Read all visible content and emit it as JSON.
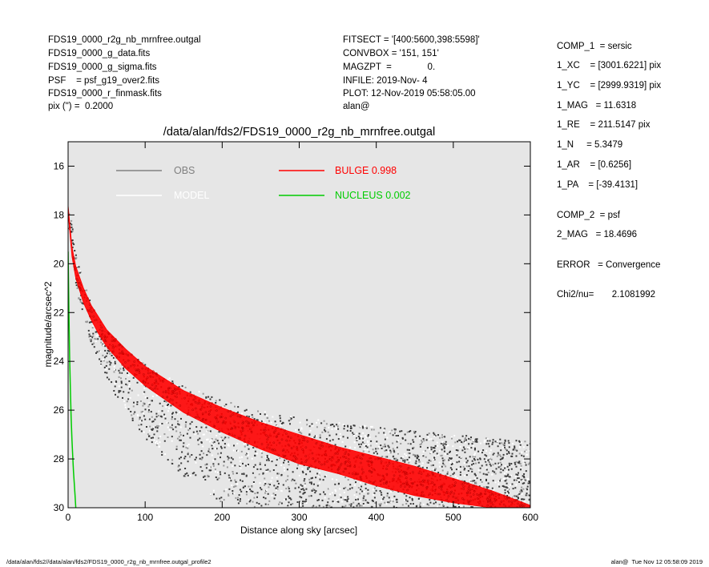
{
  "header_left": [
    "FDS19_0000_r2g_nb_mrnfree.outgal",
    "FDS19_0000_g_data.fits",
    "FDS19_0000_g_sigma.fits",
    "PSF    = psf_g19_over2.fits",
    "FDS19_0000_r_finmask.fits",
    "pix (\") =  0.2000"
  ],
  "header_mid": [
    "FITSECT = '[400:5600,398:5598]'",
    "CONVBOX = '151, 151'",
    "MAGZPT  =              0.",
    "INFILE: 2019-Nov- 4",
    "PLOT: 12-Nov-2019 05:58:05.00",
    "alan@"
  ],
  "right_panel": {
    "comp1": [
      "COMP_1  = sersic",
      "1_XC    = [3001.6221] pix",
      "1_YC    = [2999.9319] pix",
      "1_MAG   = 11.6318",
      "1_RE    = 211.5147 pix",
      "1_N     = 5.3479",
      "1_AR    = [0.6256]",
      "1_PA    = [-39.4131]"
    ],
    "comp2": [
      "COMP_2  = psf",
      "2_MAG   = 18.4696"
    ],
    "error": "ERROR   = Convergence",
    "chi2": "Chi2/nu=       2.1081992"
  },
  "footer": {
    "left": "/data/alan/fds2//data/alan/fds2/FDS19_0000_r2g_nb_mrnfree.outgal_profile2",
    "right": "alan@  Tue Nov 12 05:58:09 2019"
  },
  "colors": {
    "background": "#e6e6e6",
    "obs": "#808080",
    "model": "#ffffff",
    "bulge": "#ff0000",
    "nucleus": "#00cc00",
    "obs_dark": "#3a3a3a"
  },
  "chart_data": {
    "type": "scatter",
    "title": "/data/alan/fds2/FDS19_0000_r2g_nb_mrnfree.outgal",
    "xlabel": "Distance along sky [arcsec]",
    "ylabel": "magnitude/arcsec^2",
    "xlim": [
      0,
      600
    ],
    "ylim": [
      30,
      15
    ],
    "y_inverted": true,
    "xticks": [
      0,
      100,
      200,
      300,
      400,
      500,
      600
    ],
    "yticks": [
      16,
      18,
      20,
      22,
      24,
      26,
      28,
      30
    ],
    "legend": [
      {
        "label": "OBS",
        "color": "#808080"
      },
      {
        "label": "MODEL",
        "color": "#ffffff"
      },
      {
        "label": "BULGE  0.998",
        "color": "#ff0000"
      },
      {
        "label": "NUCLEUS  0.002",
        "color": "#00cc00"
      }
    ],
    "series": [
      {
        "name": "BULGE  0.998",
        "style": "band",
        "x": [
          0,
          5,
          10,
          20,
          30,
          40,
          50,
          75,
          100,
          150,
          200,
          250,
          300,
          350,
          400,
          450,
          500,
          550,
          600
        ],
        "y_upper": [
          17.6,
          19.3,
          20.1,
          21.0,
          21.7,
          22.2,
          22.7,
          23.5,
          24.2,
          25.2,
          25.9,
          26.5,
          27.0,
          27.5,
          27.9,
          28.3,
          28.8,
          29.3,
          29.9
        ],
        "y_lower": [
          17.9,
          19.7,
          20.6,
          21.6,
          22.3,
          22.9,
          23.4,
          24.3,
          25.0,
          26.1,
          26.9,
          27.6,
          28.2,
          28.6,
          29.1,
          29.5,
          29.8,
          30.0,
          30.0
        ]
      },
      {
        "name": "NUCLEUS  0.002",
        "style": "line",
        "x": [
          0,
          1,
          2,
          3,
          4,
          5,
          6,
          7,
          8,
          9,
          10
        ],
        "y": [
          19.5,
          22.0,
          23.8,
          25.2,
          26.3,
          27.2,
          27.9,
          28.5,
          29.0,
          29.5,
          30.0
        ]
      },
      {
        "name": "OBS",
        "style": "points",
        "x": [
          0,
          10,
          20,
          40,
          60,
          80,
          100,
          150,
          200,
          250,
          300,
          400,
          500,
          600
        ],
        "y_upper": [
          17.2,
          19.5,
          20.8,
          22.2,
          23.1,
          23.7,
          24.1,
          25.0,
          25.6,
          26.0,
          26.3,
          26.7,
          27.0,
          27.3
        ],
        "y_lower": [
          18.0,
          20.8,
          22.5,
          24.0,
          25.3,
          26.3,
          27.2,
          28.7,
          29.8,
          30.0,
          30.0,
          30.0,
          30.0,
          30.0
        ]
      }
    ]
  }
}
